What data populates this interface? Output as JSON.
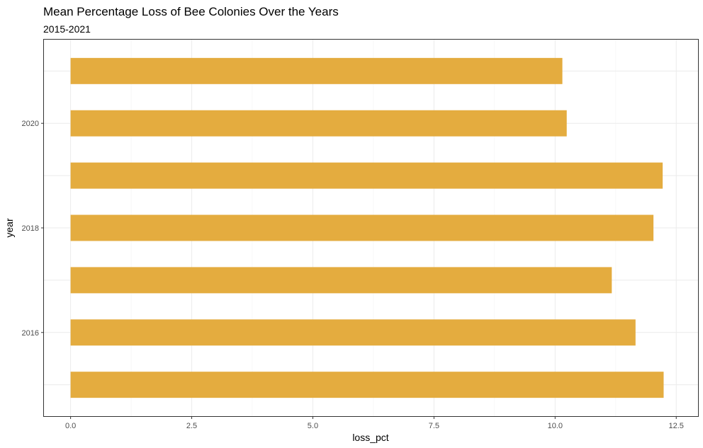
{
  "chart_data": {
    "type": "bar",
    "orientation": "horizontal",
    "title": "Mean Percentage Loss of Bee Colonies Over the Years",
    "subtitle": "2015-2021",
    "xlabel": "loss_pct",
    "ylabel": "year",
    "xlim": [
      -0.55,
      12.95
    ],
    "ylim": [
      2014.4,
      2021.6
    ],
    "x_ticks": [
      0.0,
      2.5,
      5.0,
      7.5,
      10.0,
      12.5
    ],
    "x_tick_labels": [
      "0.0",
      "2.5",
      "5.0",
      "7.5",
      "10.0",
      "12.5"
    ],
    "y_ticks": [
      2016,
      2018,
      2020
    ],
    "y_tick_labels": [
      "2016",
      "2018",
      "2020"
    ],
    "categories": [
      2015,
      2016,
      2017,
      2018,
      2019,
      2020,
      2021
    ],
    "values": [
      12.24,
      11.66,
      11.17,
      12.03,
      12.22,
      10.24,
      10.15
    ],
    "bar_color": "#E4AC3F",
    "grid": true,
    "legend": "none"
  }
}
